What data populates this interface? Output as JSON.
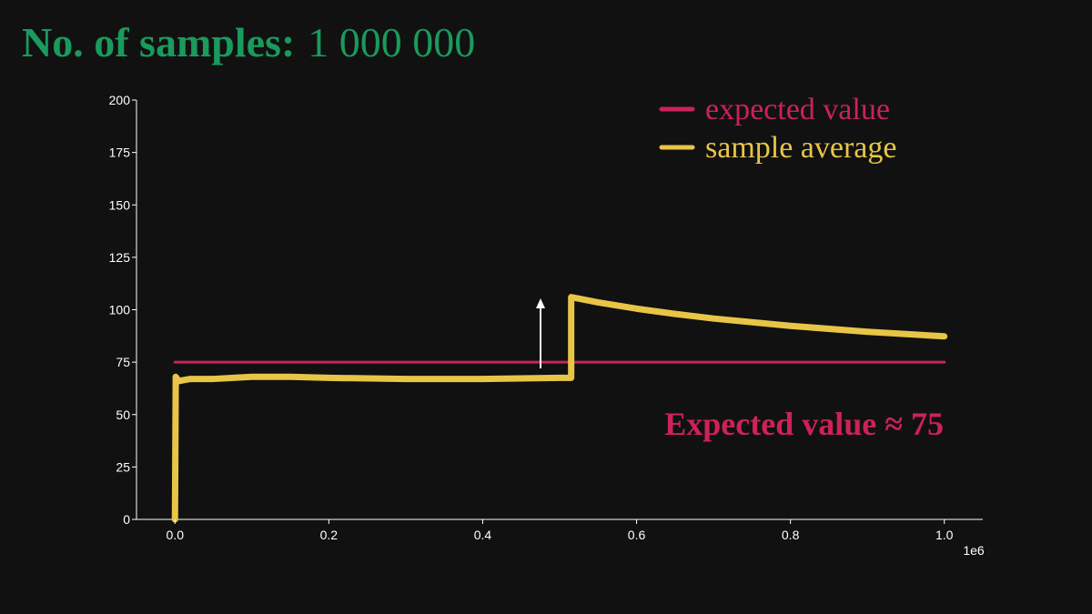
{
  "chart_data": {
    "type": "line",
    "title": "No. of samples:",
    "sample_count": "1 000 000",
    "annotation": "Expected value ≈ 75",
    "x_offset_label": "1e6",
    "xlim": [
      -0.05,
      1.05
    ],
    "xticks": [
      {
        "value": 0,
        "label": "0.0"
      },
      0.2,
      0.4,
      0.6,
      0.8,
      {
        "value": 1,
        "label": "1.0"
      }
    ],
    "ylim": [
      0,
      200
    ],
    "yticks": [
      0,
      25,
      50,
      75,
      100,
      125,
      150,
      175,
      200
    ],
    "legend": "upper right",
    "series": [
      {
        "name": "expected value",
        "color": "#cc2257",
        "x": [
          0,
          1
        ],
        "values": [
          75,
          75
        ]
      },
      {
        "name": "sample average",
        "color": "#e8c547",
        "x": [
          0,
          0.001,
          0.005,
          0.02,
          0.05,
          0.1,
          0.15,
          0.2,
          0.3,
          0.4,
          0.5,
          0.515,
          0.515,
          0.55,
          0.6,
          0.65,
          0.7,
          0.8,
          0.9,
          1.0
        ],
        "values": [
          0,
          68,
          66,
          67,
          67,
          68,
          68,
          67.5,
          67,
          67,
          67.5,
          67.5,
          106,
          103.5,
          100.5,
          98,
          95.8,
          92.3,
          89.5,
          87.3
        ]
      }
    ]
  }
}
